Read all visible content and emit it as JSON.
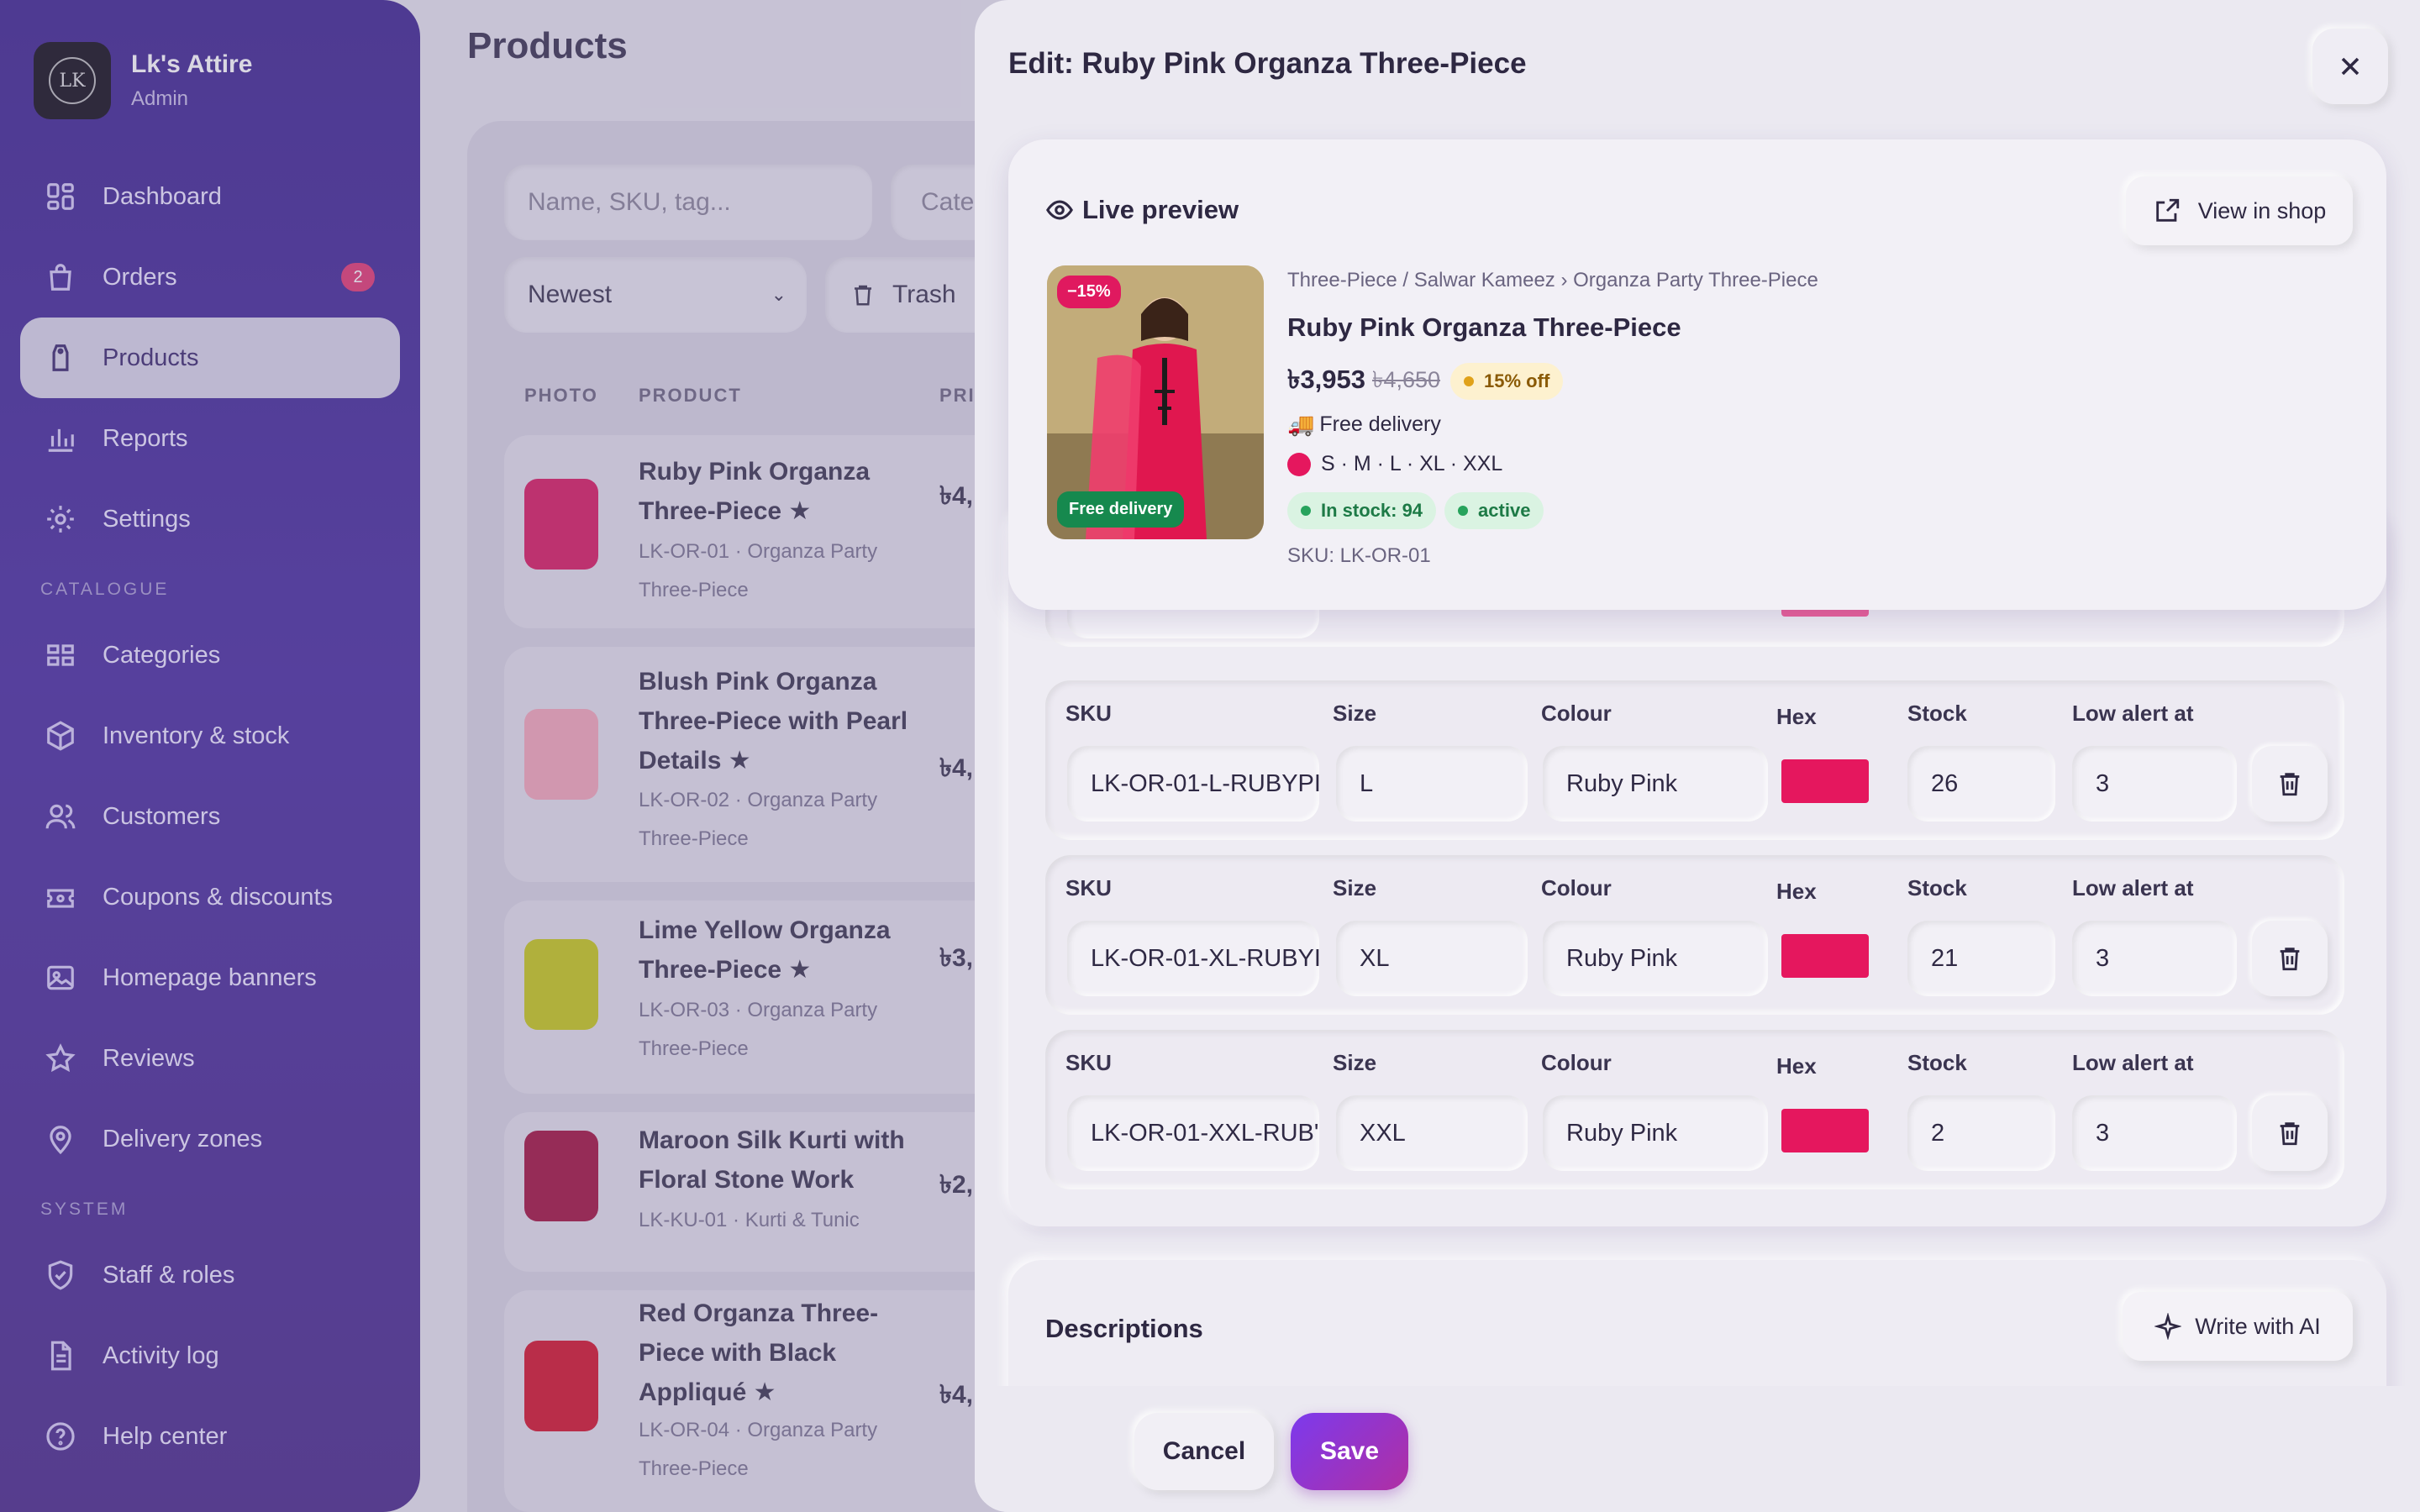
{
  "brand": {
    "name": "Lk's Attire",
    "role": "Admin",
    "logo_text": "LK"
  },
  "sidebar": {
    "items": [
      {
        "label": "Dashboard",
        "icon": "dashboard-icon"
      },
      {
        "label": "Orders",
        "icon": "bag-icon",
        "badge": "2"
      },
      {
        "label": "Products",
        "icon": "tag-icon",
        "active": true
      },
      {
        "label": "Reports",
        "icon": "bar-chart-icon"
      },
      {
        "label": "Settings",
        "icon": "gear-icon"
      }
    ],
    "catalogue_heading": "CATALOGUE",
    "catalogue": [
      {
        "label": "Categories",
        "icon": "grid-icon"
      },
      {
        "label": "Inventory & stock",
        "icon": "box-icon"
      },
      {
        "label": "Customers",
        "icon": "users-icon"
      },
      {
        "label": "Coupons & discounts",
        "icon": "ticket-icon"
      },
      {
        "label": "Homepage banners",
        "icon": "image-icon"
      },
      {
        "label": "Reviews",
        "icon": "star-icon"
      },
      {
        "label": "Delivery zones",
        "icon": "pin-icon"
      }
    ],
    "system_heading": "SYSTEM",
    "system": [
      {
        "label": "Staff & roles",
        "icon": "shield-icon"
      },
      {
        "label": "Activity log",
        "icon": "document-icon"
      },
      {
        "label": "Help center",
        "icon": "help-icon"
      }
    ]
  },
  "products_page": {
    "title": "Products",
    "search_placeholder": "Name, SKU, tag...",
    "category_filter": "Cate",
    "sort": "Newest",
    "trash_label": "Trash",
    "columns": [
      "PHOTO",
      "PRODUCT",
      "PRI"
    ],
    "rows": [
      {
        "name": "Ruby Pink Organza Three-Piece ★",
        "sub": "LK-OR-01 · Organza Party Three-Piece",
        "price": "৳4,",
        "color": "#d81b60"
      },
      {
        "name": "Blush Pink Organza Three-Piece with Pearl Details ★",
        "sub": "LK-OR-02 · Organza Party Three-Piece",
        "price": "৳4,",
        "color": "#f4a7b9"
      },
      {
        "name": "Lime Yellow Organza Three-Piece ★",
        "sub": "LK-OR-03 · Organza Party Three-Piece",
        "price": "৳3,",
        "color": "#c6c91a"
      },
      {
        "name": "Maroon Silk Kurti with Floral Stone Work",
        "sub": "LK-KU-01 · Kurti & Tunic",
        "price": "৳2,",
        "color": "#a3123f"
      },
      {
        "name": "Red Organza Three-Piece with Black Appliqué ★",
        "sub": "LK-OR-04 · Organza Party Three-Piece",
        "price": "৳4,",
        "color": "#d3142c"
      }
    ]
  },
  "drawer": {
    "title": "Edit: Ruby Pink Organza Three-Piece",
    "preview": {
      "heading": "Live preview",
      "view_in_shop": "View in shop",
      "discount_badge": "−15%",
      "free_badge": "Free delivery",
      "breadcrumb": "Three-Piece / Salwar Kameez › Organza Party Three-Piece",
      "name": "Ruby Pink Organza Three-Piece",
      "price": "৳3,953",
      "old_price": "৳4,650",
      "off_label": "15% off",
      "delivery": "Free delivery",
      "sizes": "S · M · L · XL · XXL",
      "swatch": "#e5175e",
      "in_stock": "In stock: 94",
      "status": "active",
      "sku": "SKU: LK-OR-01"
    },
    "variant_labels": {
      "sku": "SKU",
      "size": "Size",
      "colour": "Colour",
      "hex": "Hex",
      "stock": "Stock",
      "low": "Low alert at"
    },
    "variants": [
      {
        "sku": "LK-OR-01-L-RUBYPI",
        "size": "L",
        "colour": "Ruby Pink",
        "hex": "#e5175e",
        "stock": "26",
        "low": "3"
      },
      {
        "sku": "LK-OR-01-XL-RUBYI",
        "size": "XL",
        "colour": "Ruby Pink",
        "hex": "#e5175e",
        "stock": "21",
        "low": "3"
      },
      {
        "sku": "LK-OR-01-XXL-RUB'",
        "size": "XXL",
        "colour": "Ruby Pink",
        "hex": "#e5175e",
        "stock": "2",
        "low": "3"
      }
    ],
    "descriptions_title": "Descriptions",
    "write_ai": "Write with AI",
    "cancel": "Cancel",
    "save": "Save"
  }
}
